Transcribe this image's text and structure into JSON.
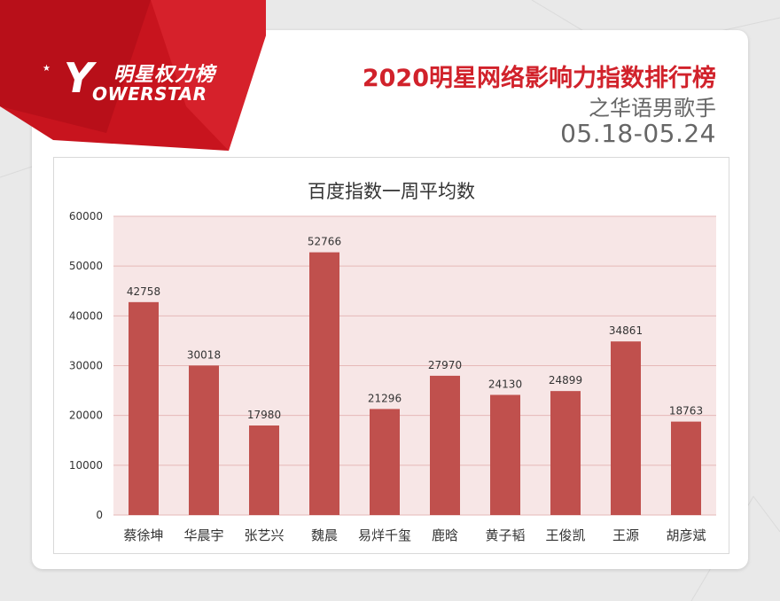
{
  "brand": {
    "logo_cn": "明星权力榜",
    "logo_y": "Y",
    "logo_en": "OWERSTAR"
  },
  "header": {
    "title": "2020明星网络影响力指数排行榜",
    "subtitle": "之华语男歌手",
    "date_range": "05.18-05.24"
  },
  "colors": {
    "bar": "#c0504d",
    "plot_bg": "#f7e6e6",
    "title_red": "#d1222b",
    "ribbon": "#c8141e"
  },
  "chart_data": {
    "type": "bar",
    "title": "百度指数一周平均数",
    "categories": [
      "蔡徐坤",
      "华晨宇",
      "张艺兴",
      "魏晨",
      "易烊千玺",
      "鹿晗",
      "黄子韬",
      "王俊凯",
      "王源",
      "胡彦斌"
    ],
    "values": [
      42758,
      30018,
      17980,
      52766,
      21296,
      27970,
      24130,
      24899,
      34861,
      18763
    ],
    "ylim": [
      0,
      60000
    ],
    "yticks": [
      0,
      10000,
      20000,
      30000,
      40000,
      50000,
      60000
    ],
    "xlabel": "",
    "ylabel": "",
    "grid": true,
    "data_labels": true
  }
}
